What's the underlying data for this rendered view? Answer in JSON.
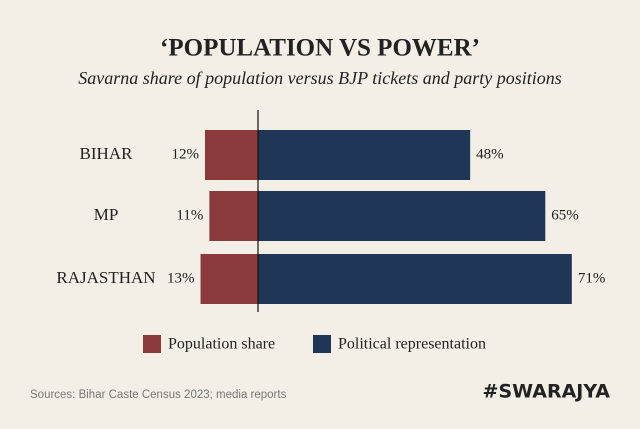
{
  "chart_data": {
    "type": "bar",
    "title": "‘POPULATION VS POWER’",
    "subtitle": "Savarna share of population versus BJP tickets and party positions",
    "categories": [
      "BIHAR",
      "MP",
      "RAJASTHAN"
    ],
    "series": [
      {
        "name": "Population share",
        "color": "#8c3b3c",
        "values": [
          12,
          11,
          13
        ],
        "value_labels": [
          "12%",
          "11%",
          "13%"
        ]
      },
      {
        "name": "Political representation",
        "color": "#1f3656",
        "values": [
          48,
          65,
          71
        ],
        "value_labels": [
          "48%",
          "65%",
          "71%"
        ]
      }
    ],
    "source": "Sources: Bihar Caste Census 2023; media reports",
    "brand": "#SWARAJYA"
  }
}
